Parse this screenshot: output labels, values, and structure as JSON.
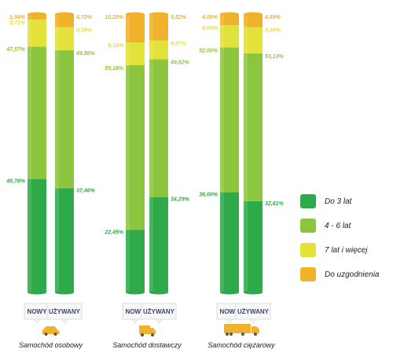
{
  "chart_data": {
    "type": "bar",
    "stacked": true,
    "orientation": "vertical",
    "groups": [
      {
        "name": "Samochód osobowy",
        "icon": "car-icon",
        "bars": [
          {
            "category": "NOWY",
            "values": {
              "Do 3 lat": 40.78,
              "4 - 6 lat": 47.57,
              "7 lat i więcej": 9.71,
              "Do uzgodnienia": 1.94
            },
            "labels": {
              "Do 3 lat": "40,78%",
              "4 - 6 lat": "47,57%",
              "7 lat i więcej": "9,71%",
              "Do uzgodnienia": "1,94%"
            }
          },
          {
            "category": "UŻYWANY",
            "values": {
              "Do 3 lat": 37.46,
              "4 - 6 lat": 49.56,
              "7 lat i więcej": 8.26,
              "Do uzgodnienia": 4.72
            },
            "labels": {
              "Do 3 lat": "37,46%",
              "4 - 6 lat": "49,56%",
              "7 lat i więcej": "8,26%",
              "Do uzgodnienia": "4,72%"
            }
          }
        ]
      },
      {
        "name": "Samochód dostawczy",
        "icon": "delivery-van-icon",
        "bars": [
          {
            "category": "NOWY",
            "values": {
              "Do 3 lat": 22.45,
              "4 - 6 lat": 59.18,
              "7 lat i więcej": 8.16,
              "Do uzgodnienia": 10.2
            },
            "labels": {
              "Do 3 lat": "22,45%",
              "4 - 6 lat": "59,18%",
              "7 lat i więcej": "8,16%",
              "Do uzgodnienia": "10,20%"
            }
          },
          {
            "category": "UŻYWANY",
            "values": {
              "Do 3 lat": 34.29,
              "4 - 6 lat": 49.52,
              "7 lat i więcej": 6.67,
              "Do uzgodnienia": 9.52
            },
            "labels": {
              "Do 3 lat": "34,29%",
              "4 - 6 lat": "49,52%",
              "7 lat i więcej": "6,67%",
              "Do uzgodnienia": "9,52%"
            }
          }
        ]
      },
      {
        "name": "Samochód ciężarowy",
        "icon": "truck-icon",
        "bars": [
          {
            "category": "NOWY",
            "values": {
              "Do 3 lat": 36.0,
              "4 - 6 lat": 52.0,
              "7 lat i więcej": 8.0,
              "Do uzgodnienia": 4.0
            },
            "labels": {
              "Do 3 lat": "36,00%",
              "4 - 6 lat": "52,00%",
              "7 lat i więcej": "8,00%",
              "Do uzgodnienia": "4,00%"
            }
          },
          {
            "category": "UŻYWANY",
            "values": {
              "Do 3 lat": 32.81,
              "4 - 6 lat": 53.13,
              "7 lat i więcej": 9.38,
              "Do uzgodnienia": 4.69
            },
            "labels": {
              "Do 3 lat": "32,81%",
              "4 - 6 lat": "53,13%",
              "7 lat i więcej": "9,38%",
              "Do uzgodnienia": "4,69%"
            }
          }
        ]
      }
    ],
    "series": [
      {
        "name": "Do 3 lat",
        "color": "#2eaa4a"
      },
      {
        "name": "4 - 6 lat",
        "color": "#8cc63f"
      },
      {
        "name": "7 lat i więcej",
        "color": "#e3e23a"
      },
      {
        "name": "Do uzgodnienia",
        "color": "#f0b22a"
      }
    ],
    "ylim": [
      0,
      100
    ],
    "grid": false,
    "legend_position": "right"
  }
}
